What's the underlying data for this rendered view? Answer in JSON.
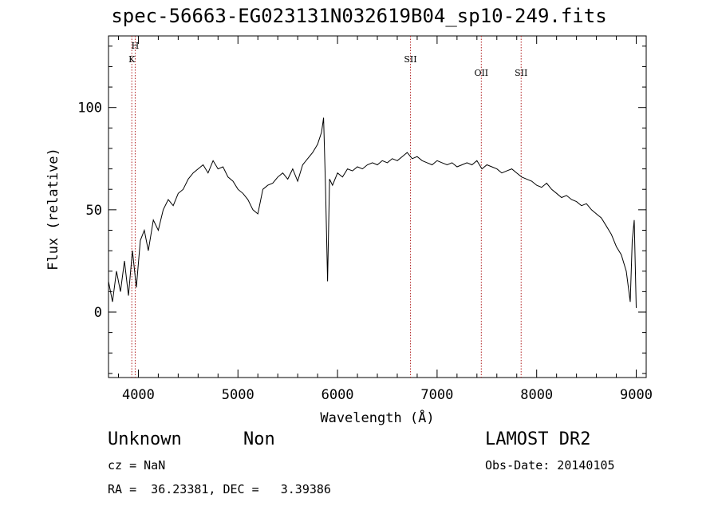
{
  "chart_data": {
    "type": "line",
    "title": "spec-56663-EG023131N032619B04_sp10-249.fits",
    "xlabel": "Wavelength (Å)",
    "ylabel": "Flux (relative)",
    "xlim": [
      3700,
      9100
    ],
    "ylim": [
      -32,
      135
    ],
    "x_ticks": [
      4000,
      5000,
      6000,
      7000,
      8000,
      9000
    ],
    "y_ticks": [
      0,
      50,
      100
    ],
    "grid": false,
    "series": [
      {
        "x": [
          3700,
          3740,
          3780,
          3820,
          3860,
          3900,
          3940,
          3980,
          4020,
          4060,
          4100,
          4150,
          4200,
          4250,
          4300,
          4350,
          4400,
          4450,
          4500,
          4550,
          4600,
          4650,
          4700,
          4750,
          4800,
          4850,
          4900,
          4950,
          5000,
          5050,
          5100,
          5150,
          5200,
          5250,
          5300,
          5350,
          5400,
          5450,
          5500,
          5550,
          5600,
          5650,
          5700,
          5750,
          5800,
          5840,
          5860,
          5880,
          5900,
          5920,
          5950,
          6000,
          6050,
          6100,
          6150,
          6200,
          6250,
          6300,
          6350,
          6400,
          6450,
          6500,
          6550,
          6600,
          6650,
          6700,
          6750,
          6800,
          6850,
          6900,
          6950,
          7000,
          7050,
          7100,
          7150,
          7200,
          7250,
          7300,
          7350,
          7400,
          7450,
          7500,
          7550,
          7600,
          7650,
          7700,
          7750,
          7800,
          7850,
          7900,
          7950,
          8000,
          8050,
          8100,
          8150,
          8200,
          8250,
          8300,
          8350,
          8400,
          8450,
          8500,
          8550,
          8600,
          8650,
          8700,
          8750,
          8800,
          8850,
          8900,
          8940,
          8960,
          8980,
          9000
        ],
        "y": [
          15,
          5,
          20,
          10,
          25,
          8,
          30,
          12,
          35,
          40,
          30,
          45,
          40,
          50,
          55,
          52,
          58,
          60,
          65,
          68,
          70,
          72,
          68,
          74,
          70,
          71,
          66,
          64,
          60,
          58,
          55,
          50,
          48,
          60,
          62,
          63,
          66,
          68,
          65,
          70,
          64,
          72,
          75,
          78,
          82,
          88,
          95,
          60,
          15,
          65,
          62,
          68,
          66,
          70,
          69,
          71,
          70,
          72,
          73,
          72,
          74,
          73,
          75,
          74,
          76,
          78,
          75,
          76,
          74,
          73,
          72,
          74,
          73,
          72,
          73,
          71,
          72,
          73,
          72,
          74,
          70,
          72,
          71,
          70,
          68,
          69,
          70,
          68,
          66,
          65,
          64,
          62,
          61,
          63,
          60,
          58,
          56,
          57,
          55,
          54,
          52,
          53,
          50,
          48,
          46,
          42,
          38,
          32,
          28,
          20,
          5,
          35,
          45,
          2
        ]
      }
    ],
    "line_markers": [
      {
        "x": 3934,
        "label": "K"
      },
      {
        "x": 3968,
        "label": "H"
      },
      {
        "x": 6732,
        "label": "SII"
      },
      {
        "x": 7444,
        "label": "OII"
      },
      {
        "x": 7844,
        "label": "SII"
      }
    ],
    "colors": {
      "spectrum": "#000000",
      "markers": "#b22222",
      "axes": "#000000"
    }
  },
  "info": {
    "class": "Unknown",
    "subclass": "Non",
    "cz": "cz = NaN",
    "radec": "RA =  36.23381, DEC =   3.39386",
    "survey": "LAMOST DR2",
    "obsdate": "Obs-Date: 20140105"
  }
}
